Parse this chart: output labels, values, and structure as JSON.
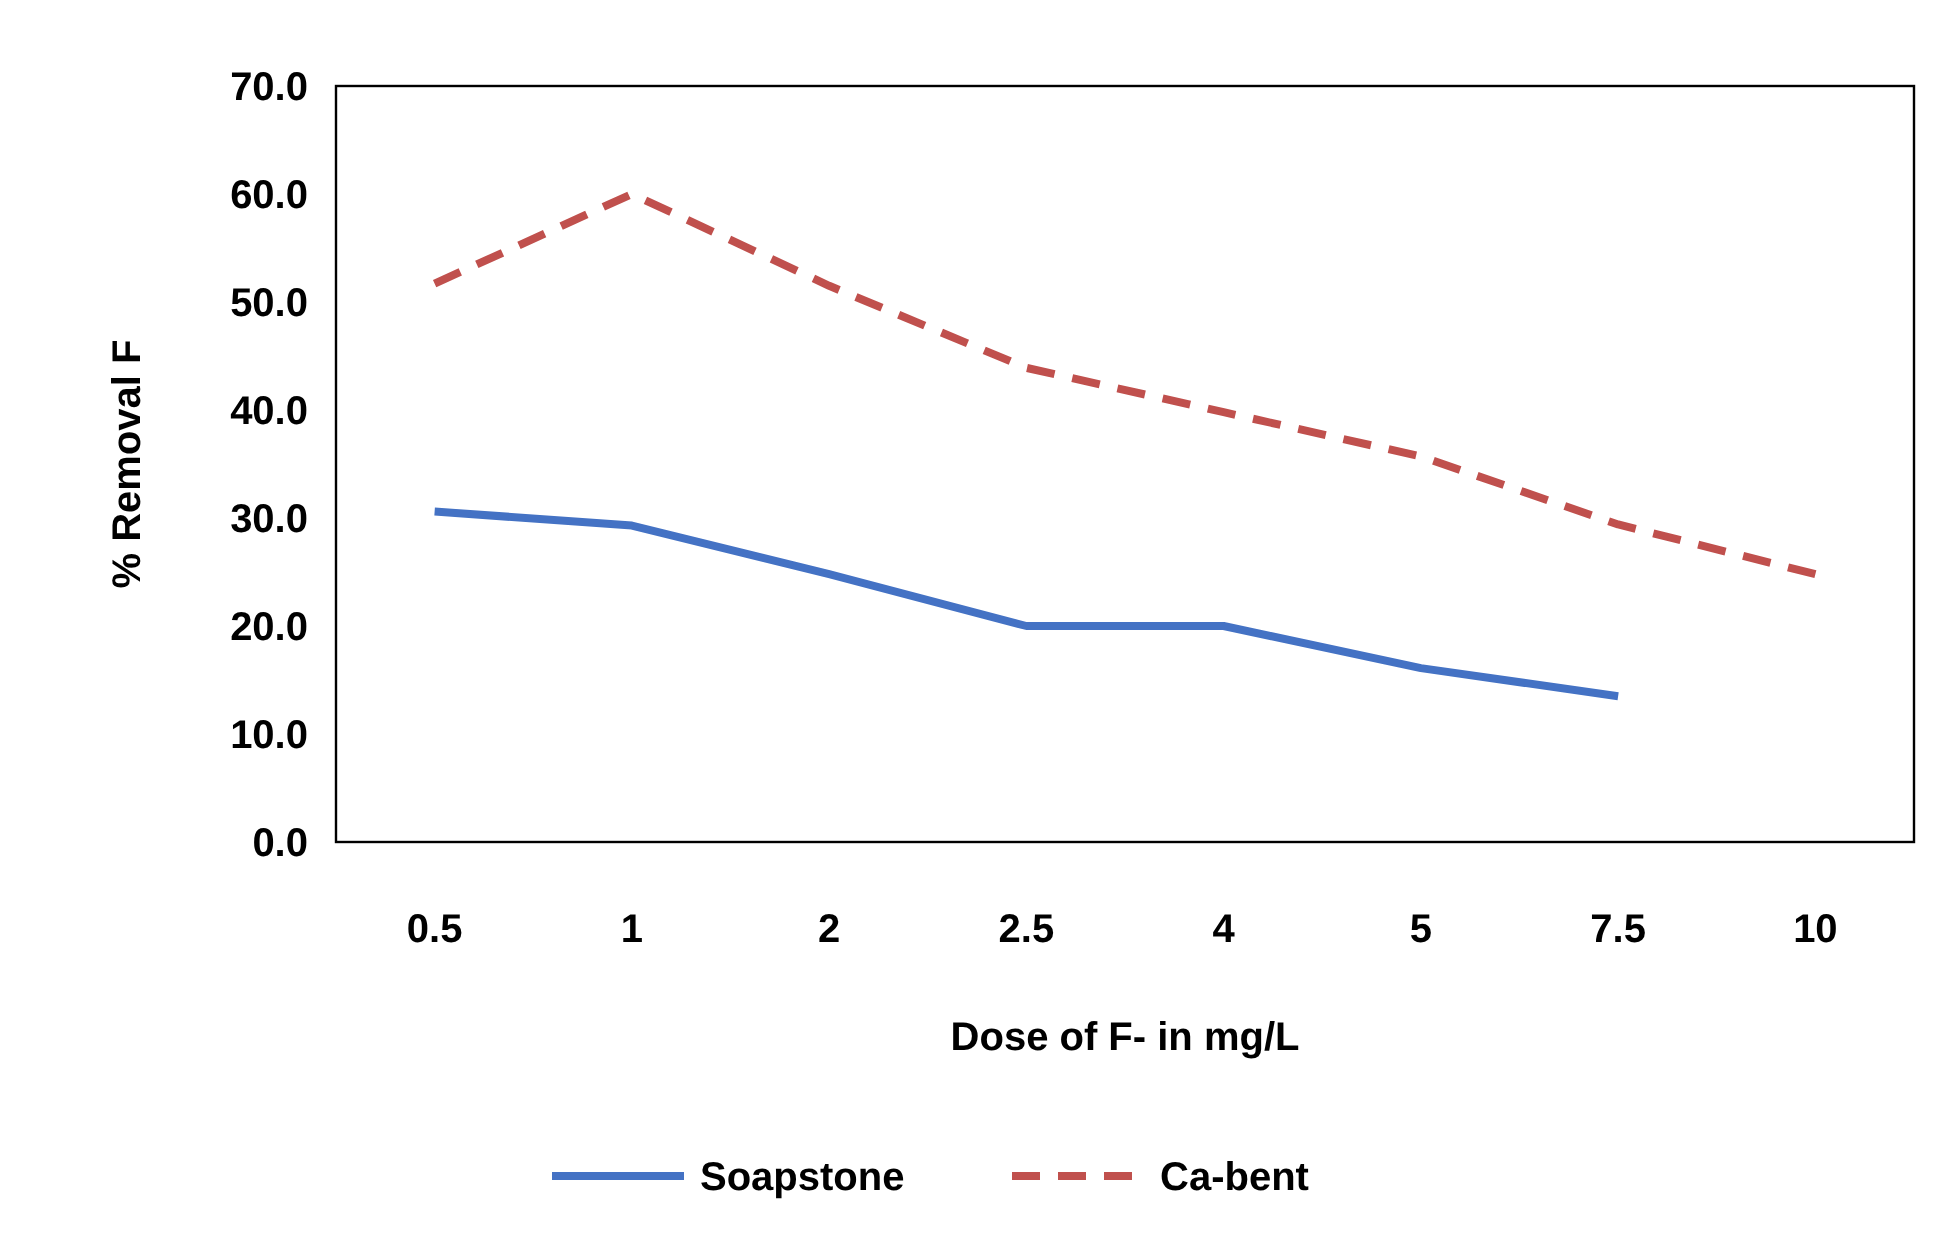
{
  "chart_data": {
    "type": "line",
    "xlabel": "Dose of F- in mg/L",
    "ylabel": "% Removal F",
    "categories": [
      "0.5",
      "1",
      "2",
      "2.5",
      "4",
      "5",
      "7.5",
      "10"
    ],
    "ylim": [
      0,
      70
    ],
    "yticks": [
      {
        "value": 0,
        "label": "0.0"
      },
      {
        "value": 10,
        "label": "10.0"
      },
      {
        "value": 20,
        "label": "20.0"
      },
      {
        "value": 30,
        "label": "30.0"
      },
      {
        "value": 40,
        "label": "40.0"
      },
      {
        "value": 50,
        "label": "50.0"
      },
      {
        "value": 60,
        "label": "60.0"
      },
      {
        "value": 70,
        "label": "70.0"
      }
    ],
    "grid": false,
    "legend": "bottom",
    "marker": "none",
    "series": [
      {
        "name": "Soapstone",
        "color": "#4472c4",
        "line_style": "solid",
        "values": [
          30.6,
          29.3,
          24.8,
          20.0,
          20.0,
          16.1,
          13.5,
          null
        ]
      },
      {
        "name": "Ca-bent",
        "color": "#c0504d",
        "line_style": "dashed",
        "values": [
          51.7,
          60.0,
          51.5,
          43.9,
          39.8,
          35.7,
          29.4,
          24.8
        ]
      }
    ]
  }
}
